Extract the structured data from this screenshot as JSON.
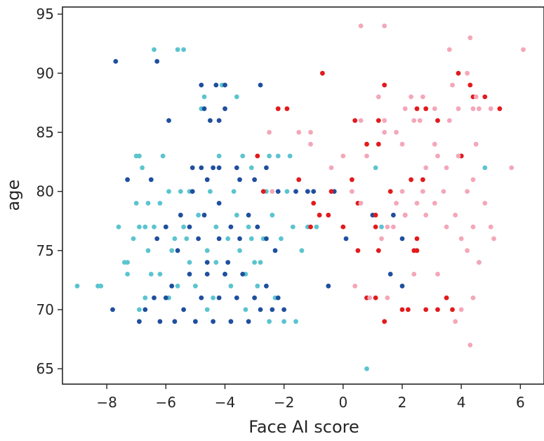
{
  "chart_data": {
    "type": "scatter",
    "xlabel": "Face AI score",
    "ylabel": "age",
    "xlim": [
      -9.5,
      6.8
    ],
    "ylim": [
      63.7,
      95.6
    ],
    "xticks": [
      -8,
      -6,
      -4,
      -2,
      0,
      2,
      4,
      6
    ],
    "xtick_labels": [
      "−8",
      "−6",
      "−4",
      "−2",
      "0",
      "2",
      "4",
      "6"
    ],
    "yticks": [
      65,
      70,
      75,
      80,
      85,
      90,
      95
    ],
    "ytick_labels": [
      "65",
      "70",
      "75",
      "80",
      "85",
      "90",
      "95"
    ],
    "grid": false,
    "series": [
      {
        "color": "#5bc4cf",
        "points": [
          [
            -6.4,
            92
          ],
          [
            -5.6,
            92
          ],
          [
            -5.4,
            92
          ],
          [
            -9.0,
            72
          ],
          [
            -8.3,
            72
          ],
          [
            -8.2,
            72
          ],
          [
            -7.6,
            77
          ],
          [
            -7.4,
            74
          ],
          [
            -7.3,
            74
          ],
          [
            -7.1,
            76
          ],
          [
            -7.0,
            83
          ],
          [
            -6.9,
            83
          ],
          [
            -7.0,
            79
          ],
          [
            -6.9,
            77
          ],
          [
            -6.8,
            82
          ],
          [
            -6.7,
            71
          ],
          [
            -6.7,
            77
          ],
          [
            -6.6,
            75
          ],
          [
            -6.5,
            73
          ],
          [
            -6.4,
            77
          ],
          [
            -6.2,
            79
          ],
          [
            -6.1,
            83
          ],
          [
            -6.0,
            77
          ],
          [
            -5.9,
            80
          ],
          [
            -5.8,
            75
          ],
          [
            -5.6,
            72
          ],
          [
            -5.5,
            80
          ],
          [
            -5.4,
            77
          ],
          [
            -5.3,
            76
          ],
          [
            -5.2,
            74
          ],
          [
            -5.0,
            72
          ],
          [
            -4.9,
            78
          ],
          [
            -4.8,
            87
          ],
          [
            -4.7,
            88
          ],
          [
            -4.6,
            75
          ],
          [
            -4.5,
            80
          ],
          [
            -4.4,
            71
          ],
          [
            -4.3,
            77
          ],
          [
            -4.2,
            83
          ],
          [
            -4.1,
            89
          ],
          [
            -4.0,
            73
          ],
          [
            -3.9,
            76
          ],
          [
            -3.8,
            72
          ],
          [
            -3.7,
            80
          ],
          [
            -3.6,
            88
          ],
          [
            -3.5,
            75
          ],
          [
            -3.4,
            83
          ],
          [
            -3.3,
            70
          ],
          [
            -3.2,
            77
          ],
          [
            -3.1,
            82
          ],
          [
            -3.0,
            74
          ],
          [
            -2.9,
            72
          ],
          [
            -2.7,
            76
          ],
          [
            -2.6,
            80
          ],
          [
            -2.5,
            83
          ],
          [
            -2.4,
            78
          ],
          [
            -2.3,
            71
          ],
          [
            -2.2,
            83
          ],
          [
            -2.1,
            76
          ],
          [
            -2.0,
            69
          ],
          [
            -1.9,
            80
          ],
          [
            -1.8,
            83
          ],
          [
            -1.7,
            77
          ],
          [
            -1.6,
            69
          ],
          [
            -1.4,
            75
          ],
          [
            -1.2,
            77
          ],
          [
            -0.9,
            77
          ],
          [
            0.8,
            65
          ],
          [
            1.1,
            82
          ],
          [
            1.3,
            77
          ],
          [
            4.0,
            83
          ],
          [
            4.6,
            74
          ],
          [
            4.8,
            82
          ],
          [
            -6.9,
            70
          ],
          [
            -6.2,
            73
          ],
          [
            -5.9,
            71
          ],
          [
            -5.2,
            80
          ],
          [
            -4.6,
            70
          ],
          [
            -3.8,
            69
          ],
          [
            -3.6,
            78
          ],
          [
            -3.3,
            73
          ],
          [
            -2.8,
            74
          ],
          [
            -2.5,
            69
          ],
          [
            -7.3,
            73
          ],
          [
            -6.6,
            79
          ],
          [
            -5.7,
            76
          ],
          [
            -4.3,
            74
          ],
          [
            -3.1,
            76
          ]
        ]
      },
      {
        "color": "#1f4f9e",
        "points": [
          [
            -7.7,
            91
          ],
          [
            -6.3,
            91
          ],
          [
            -4.8,
            89
          ],
          [
            -4.3,
            89
          ],
          [
            -4.0,
            89
          ],
          [
            -2.8,
            89
          ],
          [
            -4.7,
            87
          ],
          [
            -4.0,
            87
          ],
          [
            -4.5,
            86
          ],
          [
            -4.2,
            86
          ],
          [
            -5.9,
            86
          ],
          [
            -7.3,
            81
          ],
          [
            -5.1,
            82
          ],
          [
            -4.8,
            82
          ],
          [
            -4.6,
            81
          ],
          [
            -4.4,
            82
          ],
          [
            -4.2,
            82
          ],
          [
            -3.6,
            82
          ],
          [
            -3.5,
            81
          ],
          [
            -3.0,
            81
          ],
          [
            -2.6,
            82
          ],
          [
            -2.2,
            80
          ],
          [
            -1.6,
            80
          ],
          [
            -1.2,
            80
          ],
          [
            -1.0,
            80
          ],
          [
            -0.3,
            80
          ],
          [
            -6.5,
            81
          ],
          [
            -7.8,
            70
          ],
          [
            -6.9,
            69
          ],
          [
            -6.7,
            70
          ],
          [
            -6.4,
            71
          ],
          [
            -6.2,
            69
          ],
          [
            -6.0,
            71
          ],
          [
            -5.8,
            72
          ],
          [
            -5.7,
            69
          ],
          [
            -5.4,
            70
          ],
          [
            -5.2,
            73
          ],
          [
            -5.0,
            69
          ],
          [
            -4.8,
            71
          ],
          [
            -4.6,
            73
          ],
          [
            -4.4,
            69
          ],
          [
            -4.2,
            71
          ],
          [
            -4.0,
            73
          ],
          [
            -3.8,
            69
          ],
          [
            -3.6,
            71
          ],
          [
            -3.4,
            73
          ],
          [
            -3.2,
            69
          ],
          [
            -3.0,
            71
          ],
          [
            -2.8,
            70
          ],
          [
            -2.6,
            72
          ],
          [
            -2.4,
            70
          ],
          [
            -2.2,
            71
          ],
          [
            -2.0,
            70
          ],
          [
            -6.3,
            76
          ],
          [
            -6.0,
            77
          ],
          [
            -5.6,
            75
          ],
          [
            -5.2,
            77
          ],
          [
            -4.9,
            76
          ],
          [
            -4.6,
            74
          ],
          [
            -4.2,
            76
          ],
          [
            -3.9,
            74
          ],
          [
            -3.5,
            76
          ],
          [
            -3.2,
            78
          ],
          [
            -2.9,
            77
          ],
          [
            -2.6,
            76
          ],
          [
            -2.3,
            75
          ],
          [
            -5.5,
            78
          ],
          [
            -5.1,
            80
          ],
          [
            -4.7,
            78
          ],
          [
            -4.2,
            79
          ],
          [
            -3.8,
            77
          ],
          [
            -0.5,
            72
          ],
          [
            0.1,
            76
          ],
          [
            1.0,
            78
          ],
          [
            1.7,
            78
          ],
          [
            2.0,
            76
          ],
          [
            1.6,
            73
          ],
          [
            2.0,
            72
          ]
        ]
      },
      {
        "color": "#e31a1c",
        "points": [
          [
            -0.7,
            90
          ],
          [
            1.4,
            89
          ],
          [
            3.9,
            90
          ],
          [
            4.3,
            89
          ],
          [
            4.4,
            88
          ],
          [
            4.8,
            88
          ],
          [
            5.3,
            87
          ],
          [
            -2.2,
            87
          ],
          [
            -1.9,
            87
          ],
          [
            2.5,
            87
          ],
          [
            2.8,
            87
          ],
          [
            0.4,
            86
          ],
          [
            1.2,
            86
          ],
          [
            3.2,
            86
          ],
          [
            0.8,
            84
          ],
          [
            1.2,
            84
          ],
          [
            -2.9,
            83
          ],
          [
            -2.7,
            80
          ],
          [
            -1.5,
            81
          ],
          [
            0.3,
            81
          ],
          [
            1.6,
            80
          ],
          [
            2.7,
            81
          ],
          [
            -1.0,
            79
          ],
          [
            -0.5,
            78
          ],
          [
            -0.4,
            80
          ],
          [
            0.5,
            79
          ],
          [
            1.1,
            78
          ],
          [
            2.1,
            78
          ],
          [
            2.3,
            81
          ],
          [
            -0.8,
            78
          ],
          [
            -1.1,
            77
          ],
          [
            0.0,
            77
          ],
          [
            1.1,
            77
          ],
          [
            2.5,
            76
          ],
          [
            2.4,
            75
          ],
          [
            0.5,
            75
          ],
          [
            1.2,
            75
          ],
          [
            0.8,
            71
          ],
          [
            1.1,
            71
          ],
          [
            1.4,
            69
          ],
          [
            2.0,
            70
          ],
          [
            2.2,
            70
          ],
          [
            2.8,
            70
          ],
          [
            3.2,
            70
          ],
          [
            3.5,
            71
          ],
          [
            3.7,
            70
          ],
          [
            4.0,
            83
          ],
          [
            2.5,
            75
          ]
        ]
      },
      {
        "color": "#f4a7b9",
        "points": [
          [
            0.6,
            94
          ],
          [
            1.4,
            94
          ],
          [
            4.3,
            93
          ],
          [
            3.6,
            92
          ],
          [
            6.1,
            92
          ],
          [
            4.2,
            90
          ],
          [
            3.7,
            89
          ],
          [
            4.5,
            88
          ],
          [
            1.2,
            88
          ],
          [
            2.3,
            88
          ],
          [
            2.7,
            88
          ],
          [
            3.1,
            87
          ],
          [
            3.9,
            87
          ],
          [
            4.4,
            87
          ],
          [
            4.6,
            87
          ],
          [
            5.0,
            87
          ],
          [
            2.1,
            87
          ],
          [
            2.4,
            86
          ],
          [
            2.6,
            86
          ],
          [
            0.6,
            86
          ],
          [
            1.4,
            86
          ],
          [
            1.8,
            85
          ],
          [
            3.6,
            86
          ],
          [
            -2.5,
            85
          ],
          [
            -1.5,
            85
          ],
          [
            -1.1,
            85
          ],
          [
            1.4,
            85
          ],
          [
            2.0,
            84
          ],
          [
            3.1,
            84
          ],
          [
            0.0,
            83
          ],
          [
            3.2,
            83
          ],
          [
            3.9,
            83
          ],
          [
            5.7,
            82
          ],
          [
            4.4,
            81
          ],
          [
            2.8,
            82
          ],
          [
            3.5,
            82
          ],
          [
            -0.4,
            82
          ],
          [
            0.3,
            80
          ],
          [
            2.0,
            80
          ],
          [
            3.4,
            80
          ],
          [
            4.2,
            80
          ],
          [
            0.6,
            79
          ],
          [
            2.5,
            79
          ],
          [
            3.1,
            79
          ],
          [
            4.8,
            79
          ],
          [
            2.1,
            78
          ],
          [
            2.8,
            78
          ],
          [
            1.5,
            77
          ],
          [
            1.7,
            77
          ],
          [
            3.8,
            78
          ],
          [
            4.4,
            77
          ],
          [
            5.0,
            77
          ],
          [
            3.5,
            77
          ],
          [
            4.0,
            76
          ],
          [
            5.1,
            76
          ],
          [
            4.2,
            75
          ],
          [
            1.3,
            76
          ],
          [
            0.4,
            72
          ],
          [
            0.9,
            71
          ],
          [
            1.5,
            71
          ],
          [
            2.4,
            73
          ],
          [
            4.0,
            70
          ],
          [
            4.4,
            71
          ],
          [
            3.8,
            69
          ],
          [
            4.3,
            67
          ],
          [
            2.7,
            80
          ],
          [
            1.8,
            79
          ],
          [
            4.5,
            84
          ],
          [
            -2.4,
            80
          ],
          [
            -1.1,
            84
          ],
          [
            0.8,
            83
          ],
          [
            3.2,
            73
          ],
          [
            4.6,
            74
          ]
        ]
      }
    ]
  }
}
